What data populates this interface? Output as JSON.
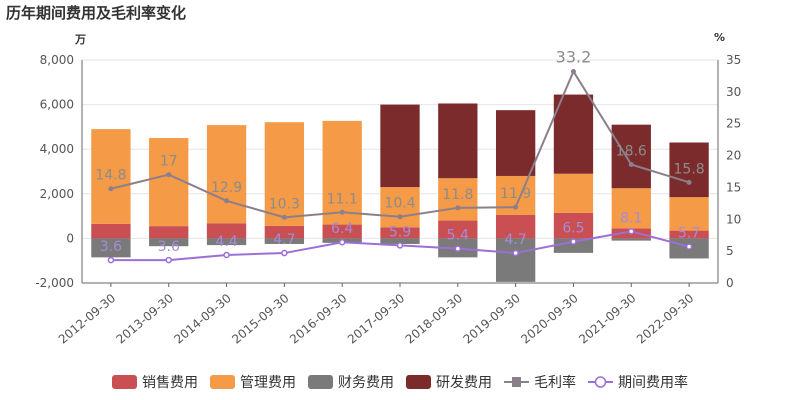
{
  "title": "历年期间费用及毛利率变化",
  "chart_data": {
    "type": "bar",
    "title": "历年期间费用及毛利率变化",
    "left_unit": "万",
    "right_unit": "%",
    "categories": [
      "2012-09-30",
      "2013-09-30",
      "2014-09-30",
      "2015-09-30",
      "2016-09-30",
      "2017-09-30",
      "2018-09-30",
      "2019-09-30",
      "2020-09-30",
      "2021-09-30",
      "2022-09-30"
    ],
    "left_axis": {
      "ylim": [
        -2000,
        8000
      ],
      "ticks": [
        -2000,
        0,
        2000,
        4000,
        6000,
        8000
      ],
      "tick_labels": [
        "-2,000",
        "0",
        "2,000",
        "4,000",
        "6,000",
        "8,000"
      ]
    },
    "right_axis": {
      "ylim": [
        0,
        35
      ],
      "ticks": [
        0,
        5,
        10,
        15,
        20,
        25,
        30,
        35
      ],
      "tick_labels": [
        "0",
        "5",
        "10",
        "15",
        "20",
        "25",
        "30",
        "35"
      ]
    },
    "bar_series": [
      {
        "name": "销售费用",
        "color": "#c94f52",
        "values": [
          650,
          550,
          680,
          560,
          620,
          500,
          800,
          1050,
          1150,
          450,
          350
        ]
      },
      {
        "name": "管理费用",
        "color": "#f59a47",
        "values": [
          4250,
          3950,
          4400,
          4650,
          4650,
          1800,
          1900,
          1750,
          1750,
          1800,
          1500
        ]
      },
      {
        "name": "财务费用",
        "color": "#7a7a7a",
        "values": [
          -850,
          -350,
          -300,
          -250,
          -200,
          -250,
          -850,
          -1950,
          -650,
          -100,
          -900
        ]
      },
      {
        "name": "研发费用",
        "color": "#7b2b2c",
        "values": [
          0,
          0,
          0,
          0,
          0,
          3700,
          3350,
          2950,
          3550,
          2850,
          2450
        ]
      }
    ],
    "line_series": [
      {
        "name": "毛利率",
        "color": "#8c7f8c",
        "values": [
          14.8,
          17,
          12.9,
          10.3,
          11.1,
          10.4,
          11.8,
          11.9,
          33.2,
          18.6,
          15.8
        ],
        "labels": [
          "14.8",
          "17",
          "12.9",
          "10.3",
          "11.1",
          "10.4",
          "11.8",
          "11.9",
          "33.2",
          "18.6",
          "15.8"
        ]
      },
      {
        "name": "期间费用率",
        "color": "#9b6fd6",
        "values": [
          3.6,
          3.6,
          4.4,
          4.7,
          6.4,
          5.9,
          5.4,
          4.7,
          6.5,
          8.1,
          5.7
        ],
        "labels": [
          "3.6",
          "3.6",
          "4.4",
          "4.7",
          "6.4",
          "5.9",
          "5.4",
          "4.7",
          "6.5",
          "8.1",
          "5.7"
        ]
      }
    ]
  }
}
